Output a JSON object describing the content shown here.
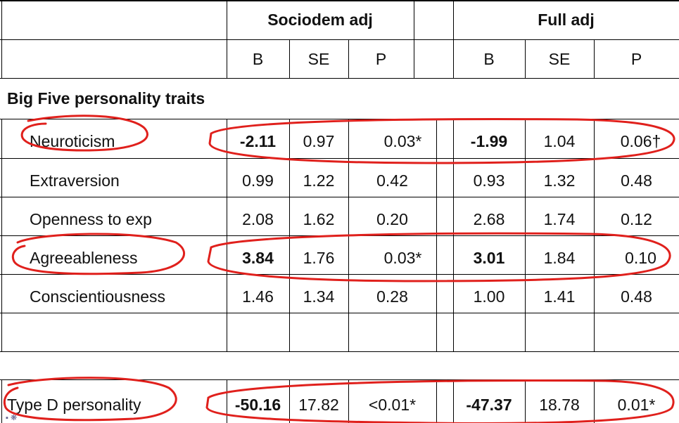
{
  "header": {
    "group1": "Sociodem adj",
    "group2": "Full adj",
    "cols": [
      "B",
      "SE",
      "P",
      "B",
      "SE",
      "P"
    ]
  },
  "section_title": "Big Five personality traits",
  "rows": [
    {
      "label": "Neuroticism",
      "v": [
        "-2.11",
        "0.97",
        "0.03*",
        "-1.99",
        "1.04",
        "0.06†"
      ],
      "bold": [
        true,
        false,
        false,
        true,
        false,
        false
      ]
    },
    {
      "label": "Extraversion",
      "v": [
        "0.99",
        "1.22",
        "0.42",
        "0.93",
        "1.32",
        "0.48"
      ],
      "bold": [
        false,
        false,
        false,
        false,
        false,
        false
      ]
    },
    {
      "label": "Openness to exp",
      "v": [
        "2.08",
        "1.62",
        "0.20",
        "2.68",
        "1.74",
        "0.12"
      ],
      "bold": [
        false,
        false,
        false,
        false,
        false,
        false
      ]
    },
    {
      "label": "Agreeableness",
      "v": [
        "3.84",
        "1.76",
        "0.03*",
        "3.01",
        "1.84",
        "0.10"
      ],
      "bold": [
        true,
        false,
        false,
        true,
        false,
        false
      ]
    },
    {
      "label": "Conscientiousness",
      "v": [
        "1.46",
        "1.34",
        "0.28",
        "1.00",
        "1.41",
        "0.48"
      ],
      "bold": [
        false,
        false,
        false,
        false,
        false,
        false
      ]
    }
  ],
  "typed": {
    "label": "Type D personality",
    "v": [
      "-50.16",
      "17.82",
      "<0.01*",
      "-47.37",
      "18.78",
      "0.01*"
    ],
    "bold": [
      true,
      false,
      false,
      true,
      false,
      false
    ]
  },
  "annotation_color": "#e0201c"
}
